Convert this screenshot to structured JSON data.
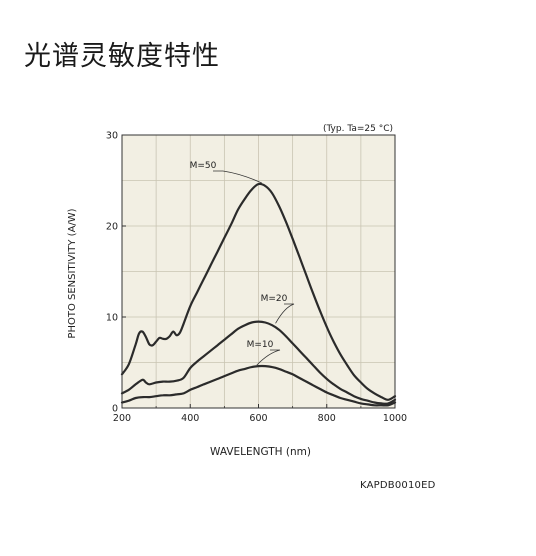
{
  "page": {
    "title": "光谱灵敏度特性",
    "figure_id": "KAPDB0010ED"
  },
  "chart_data": {
    "type": "line",
    "title": "",
    "condition_note": "(Typ. Ta=25 °C)",
    "xlabel": "WAVELENGTH (nm)",
    "ylabel": "PHOTO SENSITIVITY (A/W)",
    "xlim": [
      200,
      1000
    ],
    "ylim": [
      0,
      30
    ],
    "xticks": [
      200,
      400,
      600,
      800,
      1000
    ],
    "yticks": [
      0,
      10,
      20,
      30
    ],
    "grid": true,
    "background_color": "#f2efe3",
    "line_color": "#2b2b2b",
    "series": [
      {
        "name": "M=50",
        "x": [
          200,
          220,
          240,
          250,
          260,
          270,
          280,
          290,
          300,
          310,
          320,
          330,
          340,
          350,
          360,
          370,
          380,
          400,
          420,
          440,
          460,
          480,
          500,
          520,
          540,
          560,
          580,
          600,
          620,
          640,
          660,
          680,
          700,
          720,
          740,
          760,
          780,
          800,
          820,
          840,
          860,
          880,
          900,
          920,
          940,
          960,
          980,
          1000
        ],
        "values": [
          3.7,
          4.8,
          7.0,
          8.2,
          8.4,
          7.8,
          7.0,
          6.9,
          7.3,
          7.7,
          7.6,
          7.6,
          7.9,
          8.4,
          8.0,
          8.3,
          9.2,
          11.2,
          12.7,
          14.2,
          15.7,
          17.2,
          18.7,
          20.2,
          21.8,
          23.0,
          24.0,
          24.6,
          24.4,
          23.6,
          22.2,
          20.5,
          18.6,
          16.6,
          14.6,
          12.6,
          10.7,
          8.9,
          7.3,
          5.9,
          4.7,
          3.6,
          2.8,
          2.1,
          1.6,
          1.2,
          0.9,
          1.3
        ]
      },
      {
        "name": "M=20",
        "x": [
          200,
          220,
          240,
          260,
          270,
          280,
          300,
          320,
          340,
          360,
          380,
          400,
          420,
          440,
          460,
          480,
          500,
          520,
          540,
          560,
          580,
          600,
          620,
          640,
          660,
          680,
          700,
          720,
          740,
          760,
          780,
          800,
          820,
          840,
          860,
          880,
          900,
          920,
          940,
          960,
          980,
          1000
        ],
        "values": [
          1.6,
          2.0,
          2.6,
          3.1,
          2.8,
          2.6,
          2.8,
          2.9,
          2.9,
          3.0,
          3.3,
          4.4,
          5.1,
          5.7,
          6.3,
          6.9,
          7.5,
          8.1,
          8.7,
          9.1,
          9.4,
          9.5,
          9.4,
          9.1,
          8.6,
          7.9,
          7.1,
          6.3,
          5.5,
          4.7,
          3.9,
          3.2,
          2.6,
          2.1,
          1.7,
          1.3,
          1.0,
          0.8,
          0.6,
          0.5,
          0.5,
          0.9
        ]
      },
      {
        "name": "M=10",
        "x": [
          200,
          220,
          240,
          260,
          280,
          300,
          320,
          340,
          360,
          380,
          400,
          420,
          440,
          460,
          480,
          500,
          520,
          540,
          560,
          580,
          600,
          620,
          640,
          660,
          680,
          700,
          720,
          740,
          760,
          780,
          800,
          820,
          840,
          860,
          880,
          900,
          920,
          940,
          960,
          980,
          1000
        ],
        "values": [
          0.6,
          0.8,
          1.1,
          1.2,
          1.2,
          1.3,
          1.4,
          1.4,
          1.5,
          1.6,
          2.0,
          2.3,
          2.6,
          2.9,
          3.2,
          3.5,
          3.8,
          4.1,
          4.3,
          4.5,
          4.6,
          4.6,
          4.5,
          4.3,
          4.0,
          3.7,
          3.3,
          2.9,
          2.5,
          2.1,
          1.7,
          1.4,
          1.1,
          0.9,
          0.7,
          0.5,
          0.4,
          0.3,
          0.3,
          0.3,
          0.6
        ]
      }
    ],
    "annotations": [
      {
        "text": "M=50",
        "at_x": 610,
        "at_y": 24.6
      },
      {
        "text": "M=20",
        "at_x": 650,
        "at_y": 9.2
      },
      {
        "text": "M=10",
        "at_x": 595,
        "at_y": 4.6
      }
    ]
  }
}
